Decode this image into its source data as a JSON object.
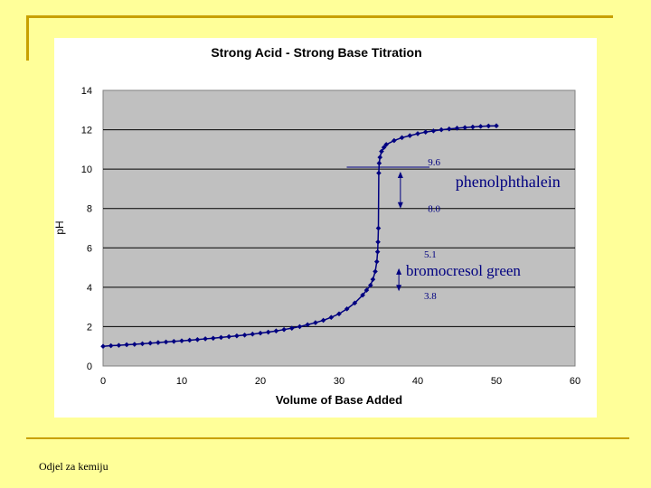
{
  "footer": {
    "label": "Odjel za kemiju"
  },
  "colors": {
    "background": "#ffff99",
    "accent_rule": "#c8a000",
    "plot_bg": "#c0c0c0",
    "series": "#000080"
  },
  "chart_data": {
    "type": "line",
    "title": "Strong Acid - Strong Base Titration",
    "xlabel": "Volume of Base Added",
    "ylabel": "pH",
    "xlim": [
      0,
      60
    ],
    "ylim": [
      0,
      14
    ],
    "xticks": [
      0,
      10,
      20,
      30,
      40,
      50,
      60
    ],
    "yticks": [
      0,
      2,
      4,
      6,
      8,
      10,
      12,
      14
    ],
    "grid": "horizontal",
    "series": [
      {
        "x": [
          0,
          1,
          2,
          3,
          4,
          5,
          6,
          7,
          8,
          9,
          10,
          11,
          12,
          13,
          14,
          15,
          16,
          17,
          18,
          19,
          20,
          21,
          22,
          23,
          24,
          25,
          26,
          27,
          28,
          29,
          30,
          31,
          32,
          33,
          33.5,
          34,
          34.3,
          34.6,
          34.8,
          34.9,
          34.95,
          35,
          35.05,
          35.1,
          35.2,
          35.4,
          35.7,
          36,
          37,
          38,
          39,
          40,
          41,
          42,
          43,
          44,
          45,
          46,
          47,
          48,
          49,
          50
        ],
        "y": [
          1.0,
          1.03,
          1.05,
          1.08,
          1.1,
          1.13,
          1.16,
          1.19,
          1.22,
          1.25,
          1.28,
          1.31,
          1.34,
          1.38,
          1.41,
          1.45,
          1.49,
          1.53,
          1.57,
          1.62,
          1.67,
          1.72,
          1.78,
          1.85,
          1.92,
          2.0,
          2.1,
          2.2,
          2.32,
          2.47,
          2.65,
          2.9,
          3.2,
          3.6,
          3.85,
          4.1,
          4.4,
          4.8,
          5.3,
          5.8,
          6.3,
          7.0,
          9.8,
          10.3,
          10.6,
          10.9,
          11.1,
          11.25,
          11.45,
          11.6,
          11.7,
          11.8,
          11.88,
          11.94,
          12.0,
          12.04,
          12.08,
          12.11,
          12.14,
          12.17,
          12.19,
          12.2
        ]
      }
    ],
    "annotations": [
      {
        "text": "9.6",
        "y": 10.1
      },
      {
        "text": "8.0",
        "y": 8.0
      },
      {
        "text": "phenolphthalein"
      },
      {
        "text": "5.1",
        "y": 5.1
      },
      {
        "text": "bromocresol green"
      },
      {
        "text": "3.8",
        "y": 3.8
      }
    ]
  }
}
